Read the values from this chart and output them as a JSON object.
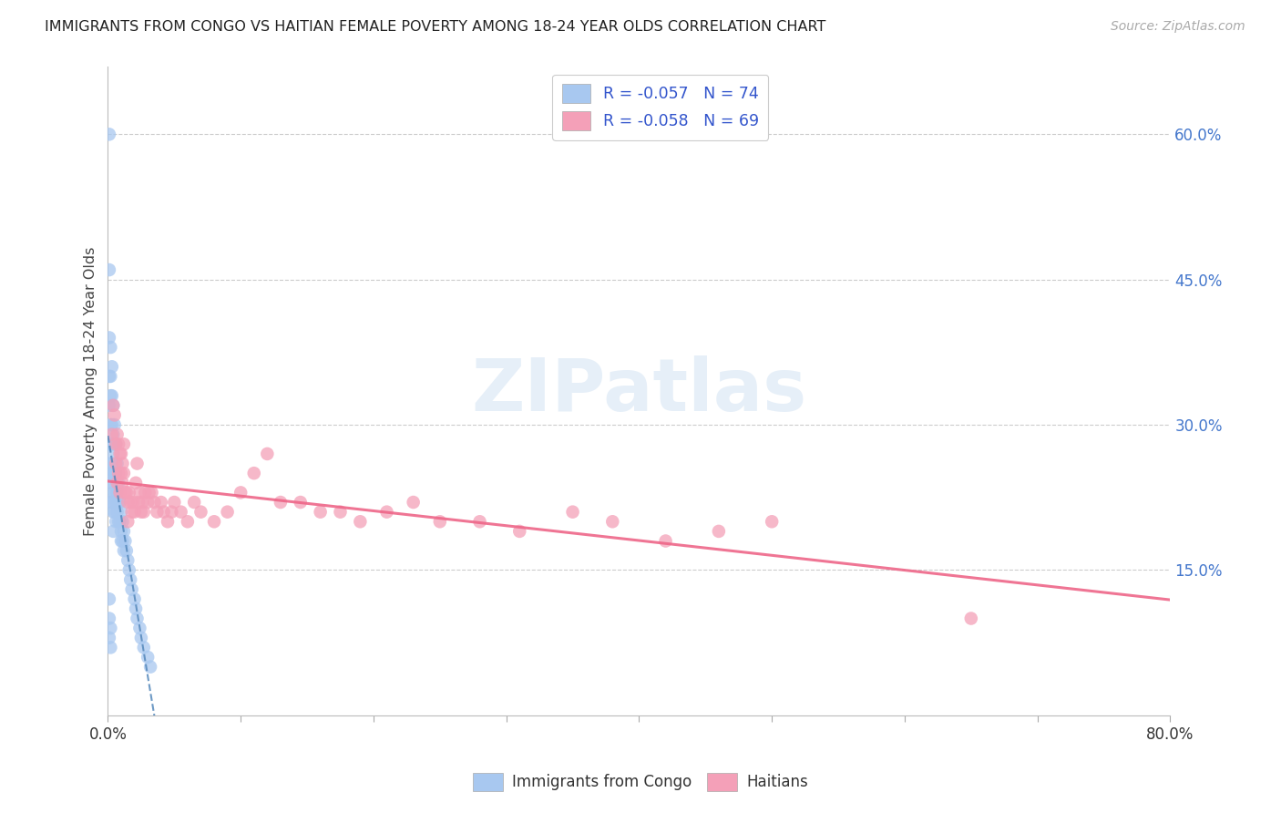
{
  "title": "IMMIGRANTS FROM CONGO VS HAITIAN FEMALE POVERTY AMONG 18-24 YEAR OLDS CORRELATION CHART",
  "source": "Source: ZipAtlas.com",
  "ylabel": "Female Poverty Among 18-24 Year Olds",
  "xlim": [
    0.0,
    0.8
  ],
  "ylim": [
    0.0,
    0.67
  ],
  "yticks_right": [
    0.15,
    0.3,
    0.45,
    0.6
  ],
  "ytick_right_labels": [
    "15.0%",
    "30.0%",
    "45.0%",
    "60.0%"
  ],
  "legend_label1": "Immigrants from Congo",
  "legend_label2": "Haitians",
  "watermark": "ZIPatlas",
  "scatter_color_congo": "#A8C8F0",
  "scatter_color_haiti": "#F4A0B8",
  "trendline_color_congo": "#5588BB",
  "trendline_color_haiti": "#EE6688",
  "grid_color": "#CCCCCC",
  "title_color": "#222222",
  "source_color": "#AAAAAA",
  "axis_label_color": "#444444",
  "right_tick_color": "#4477CC",
  "legend_text_color": "#3355CC",
  "congo_x": [
    0.001,
    0.001,
    0.001,
    0.001,
    0.001,
    0.001,
    0.001,
    0.001,
    0.002,
    0.002,
    0.002,
    0.002,
    0.002,
    0.002,
    0.002,
    0.003,
    0.003,
    0.003,
    0.003,
    0.003,
    0.003,
    0.003,
    0.004,
    0.004,
    0.004,
    0.004,
    0.004,
    0.004,
    0.004,
    0.005,
    0.005,
    0.005,
    0.005,
    0.005,
    0.006,
    0.006,
    0.006,
    0.006,
    0.007,
    0.007,
    0.007,
    0.008,
    0.008,
    0.008,
    0.009,
    0.009,
    0.01,
    0.01,
    0.01,
    0.011,
    0.011,
    0.012,
    0.012,
    0.013,
    0.014,
    0.015,
    0.016,
    0.017,
    0.018,
    0.02,
    0.021,
    0.022,
    0.024,
    0.025,
    0.027,
    0.03,
    0.032,
    0.001,
    0.001,
    0.001,
    0.002,
    0.002
  ],
  "congo_y": [
    0.6,
    0.46,
    0.39,
    0.35,
    0.32,
    0.28,
    0.26,
    0.24,
    0.38,
    0.35,
    0.33,
    0.3,
    0.28,
    0.25,
    0.22,
    0.36,
    0.33,
    0.3,
    0.28,
    0.26,
    0.24,
    0.22,
    0.32,
    0.29,
    0.27,
    0.25,
    0.23,
    0.21,
    0.19,
    0.3,
    0.28,
    0.25,
    0.23,
    0.21,
    0.28,
    0.25,
    0.22,
    0.2,
    0.26,
    0.23,
    0.21,
    0.24,
    0.22,
    0.2,
    0.22,
    0.2,
    0.21,
    0.19,
    0.18,
    0.2,
    0.18,
    0.19,
    0.17,
    0.18,
    0.17,
    0.16,
    0.15,
    0.14,
    0.13,
    0.12,
    0.11,
    0.1,
    0.09,
    0.08,
    0.07,
    0.06,
    0.05,
    0.12,
    0.1,
    0.08,
    0.09,
    0.07
  ],
  "haiti_x": [
    0.003,
    0.004,
    0.005,
    0.006,
    0.006,
    0.007,
    0.007,
    0.008,
    0.008,
    0.009,
    0.009,
    0.01,
    0.01,
    0.011,
    0.011,
    0.012,
    0.012,
    0.013,
    0.014,
    0.015,
    0.015,
    0.016,
    0.017,
    0.018,
    0.019,
    0.02,
    0.021,
    0.022,
    0.023,
    0.024,
    0.025,
    0.026,
    0.027,
    0.028,
    0.03,
    0.031,
    0.033,
    0.035,
    0.037,
    0.04,
    0.042,
    0.045,
    0.048,
    0.05,
    0.055,
    0.06,
    0.065,
    0.07,
    0.08,
    0.09,
    0.1,
    0.11,
    0.12,
    0.13,
    0.145,
    0.16,
    0.175,
    0.19,
    0.21,
    0.23,
    0.25,
    0.28,
    0.31,
    0.35,
    0.38,
    0.42,
    0.46,
    0.5,
    0.65
  ],
  "haiti_y": [
    0.29,
    0.32,
    0.31,
    0.26,
    0.28,
    0.29,
    0.24,
    0.25,
    0.28,
    0.27,
    0.23,
    0.25,
    0.27,
    0.26,
    0.24,
    0.25,
    0.28,
    0.23,
    0.23,
    0.22,
    0.2,
    0.23,
    0.22,
    0.21,
    0.22,
    0.21,
    0.24,
    0.26,
    0.22,
    0.23,
    0.21,
    0.22,
    0.21,
    0.23,
    0.22,
    0.23,
    0.23,
    0.22,
    0.21,
    0.22,
    0.21,
    0.2,
    0.21,
    0.22,
    0.21,
    0.2,
    0.22,
    0.21,
    0.2,
    0.21,
    0.23,
    0.25,
    0.27,
    0.22,
    0.22,
    0.21,
    0.21,
    0.2,
    0.21,
    0.22,
    0.2,
    0.2,
    0.19,
    0.21,
    0.2,
    0.18,
    0.19,
    0.2,
    0.1
  ]
}
